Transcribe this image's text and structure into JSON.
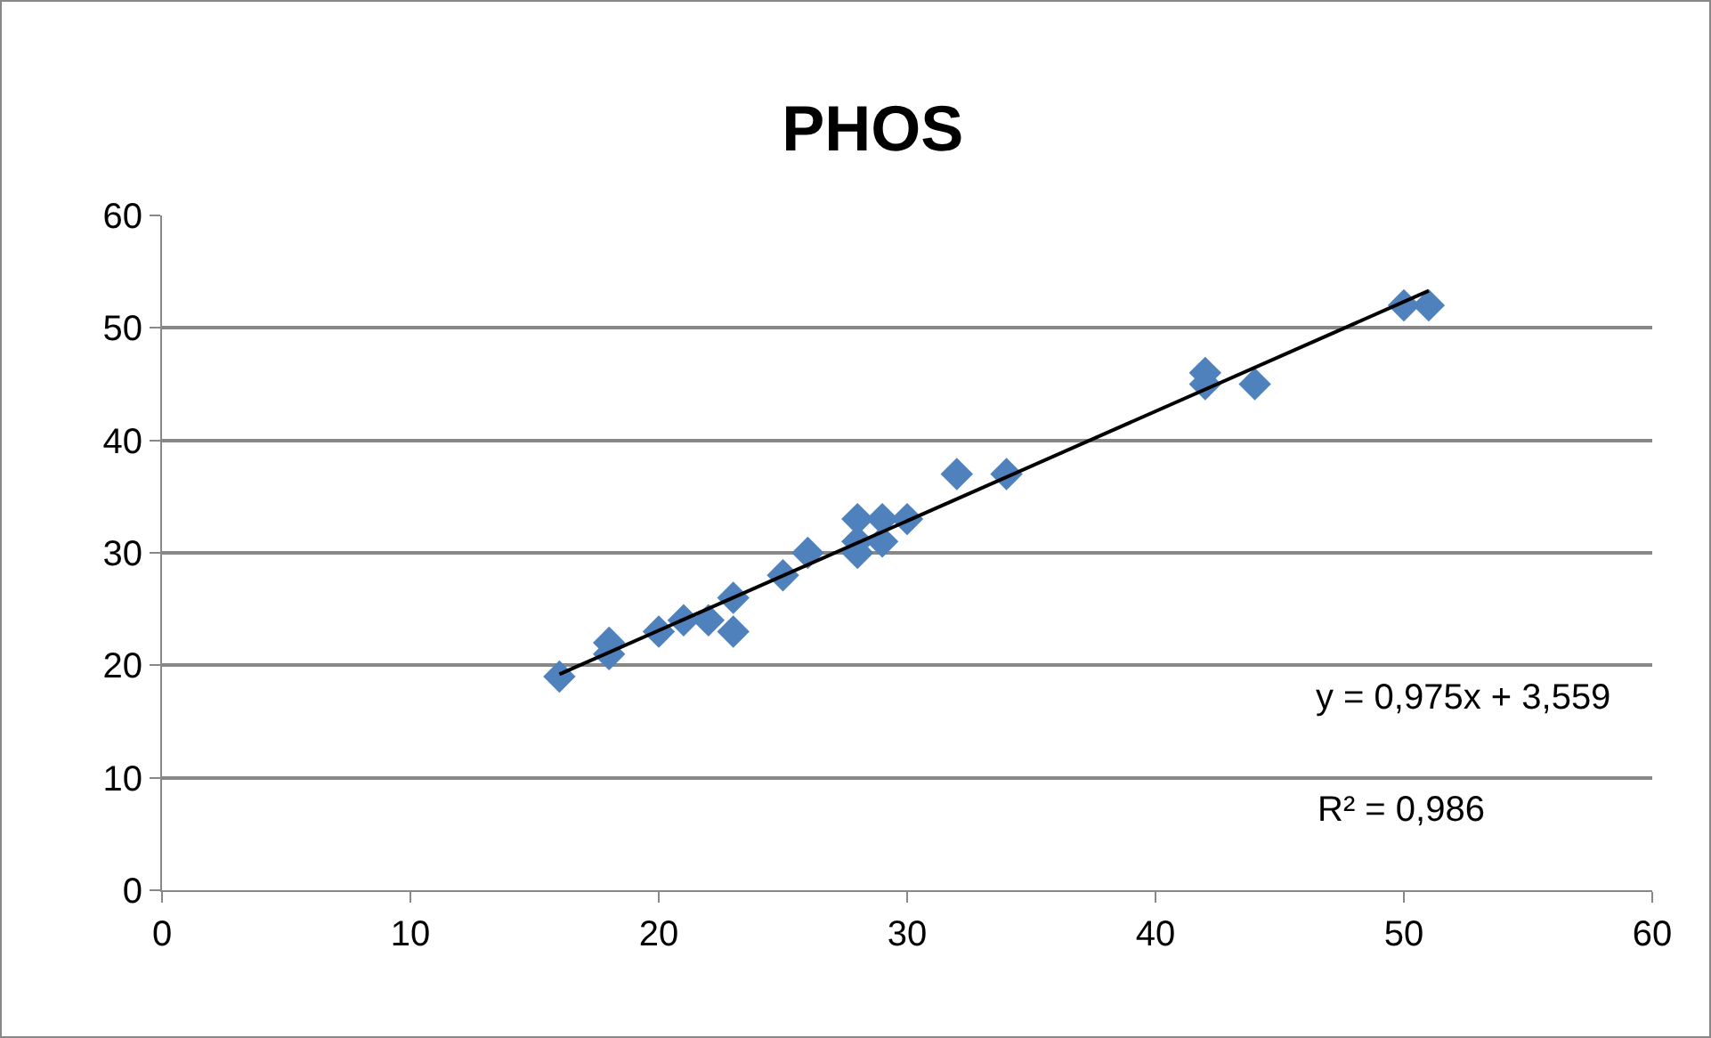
{
  "chart_data": {
    "type": "scatter",
    "title": "PHOS",
    "series": [
      {
        "color": "#4f81bd",
        "x": [
          16,
          18,
          18,
          20,
          21,
          22,
          23,
          23,
          25,
          26,
          28,
          28,
          28,
          29,
          29,
          30,
          32,
          34,
          42,
          42,
          44,
          50,
          51
        ],
        "values": [
          19,
          22,
          21,
          23,
          24,
          24,
          26,
          23,
          28,
          30,
          31,
          33,
          30,
          33,
          31,
          33,
          37,
          37,
          46,
          45,
          45,
          52,
          52
        ]
      },
      {
        "type": "line",
        "marker": "none",
        "color": "#000000",
        "x": [
          16,
          51
        ],
        "values": [
          19.2,
          53.3
        ]
      }
    ],
    "marker": "diamond",
    "grid": "y",
    "xlim": [
      0,
      60
    ],
    "xticks": [
      0,
      10,
      20,
      30,
      40,
      50,
      60
    ],
    "ylim": [
      0,
      60
    ],
    "yticks": [
      0,
      10,
      20,
      30,
      40,
      50,
      60
    ],
    "annotations": [
      "y = 0,975x + 3,559",
      "R² = 0,986"
    ]
  }
}
